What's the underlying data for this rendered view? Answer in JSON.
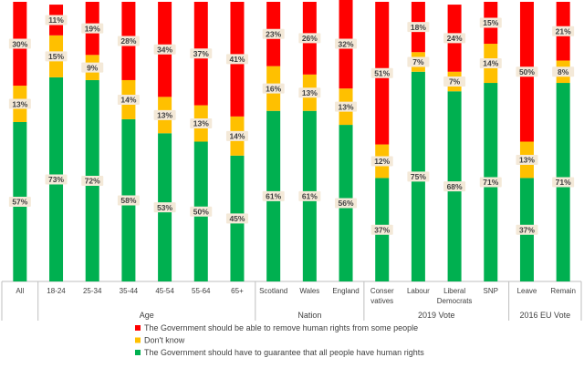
{
  "chart_data": {
    "type": "bar",
    "stacked": true,
    "percent": true,
    "categories": [
      "All",
      "18-24",
      "25-34",
      "35-44",
      "45-54",
      "55-64",
      "65+",
      "Scotland",
      "Wales",
      "England",
      "Conser vatives",
      "Labour",
      "Liberal Democrats",
      "SNP",
      "Leave",
      "Remain"
    ],
    "groups": [
      {
        "label": "",
        "count": 1
      },
      {
        "label": "Age",
        "count": 6
      },
      {
        "label": "Nation",
        "count": 3
      },
      {
        "label": "2019 Vote",
        "count": 4
      },
      {
        "label": "2016 EU Vote",
        "count": 2
      }
    ],
    "series": [
      {
        "name": "The Government should have to guarantee that all people have human rights",
        "color": "#00b050",
        "values": [
          57,
          73,
          72,
          58,
          53,
          50,
          45,
          61,
          61,
          56,
          37,
          75,
          68,
          71,
          37,
          71
        ]
      },
      {
        "name": "Don't know",
        "color": "#ffc000",
        "values": [
          13,
          15,
          9,
          14,
          13,
          13,
          14,
          16,
          13,
          13,
          12,
          7,
          7,
          14,
          13,
          8
        ]
      },
      {
        "name": "The Government should be able to remove human rights from some people",
        "color": "#ff0000",
        "values": [
          30,
          11,
          19,
          28,
          34,
          37,
          41,
          23,
          26,
          32,
          51,
          18,
          24,
          15,
          50,
          21
        ]
      }
    ],
    "legend": [
      {
        "label": "The Government should be able to remove human rights from some people",
        "color": "#ff0000"
      },
      {
        "label": "Don't know",
        "color": "#ffc000"
      },
      {
        "label": "The Government should have to guarantee that all people have human rights",
        "color": "#00b050"
      }
    ],
    "ylim": [
      0,
      100
    ]
  }
}
